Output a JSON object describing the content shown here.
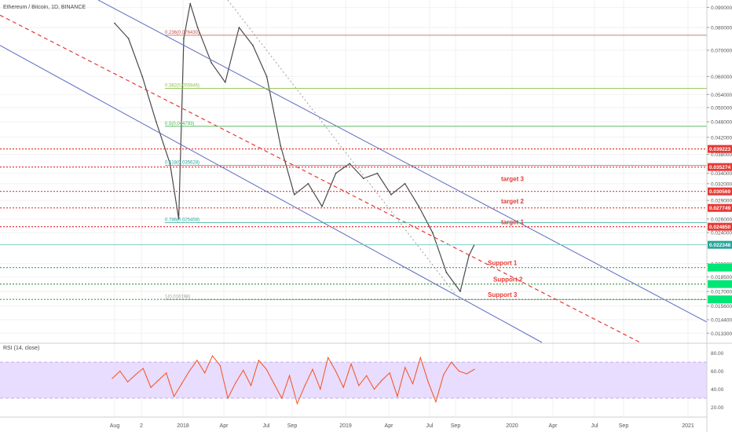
{
  "header": {
    "title": "Ethereum / Bitcoin, 1D, BINANCE"
  },
  "chart_data": {
    "type": "line",
    "title": "Ethereum / Bitcoin, 1D, BINANCE",
    "scale": "log",
    "ylim": [
      0.0126,
      0.094
    ],
    "price_ticks": [
      "0.090000",
      "0.080000",
      "0.070000",
      "0.060000",
      "0.054000",
      "0.050000",
      "0.046000",
      "0.042000",
      "0.038000",
      "0.034000",
      "0.032000",
      "0.029000",
      "0.026000",
      "0.024000",
      "0.020000",
      "0.018500",
      "0.017000",
      "0.015600",
      "0.014400",
      "0.013300"
    ],
    "x_ticks": [
      "Aug",
      "2",
      "2018",
      "Apr",
      "Jul",
      "Sep",
      "2019",
      "Apr",
      "Jul",
      "Sep",
      "2020",
      "Apr",
      "Jul",
      "Sep",
      "2021"
    ],
    "price_series": {
      "name": "ETHBTC",
      "x": [
        "2017-08",
        "2017-09",
        "2017-10",
        "2017-11",
        "2017-12",
        "2017-12-20",
        "2018-01",
        "2018-01-15",
        "2018-02",
        "2018-03",
        "2018-04",
        "2018-05",
        "2018-06",
        "2018-07",
        "2018-08",
        "2018-09",
        "2018-10",
        "2018-11",
        "2018-12",
        "2019-01",
        "2019-02",
        "2019-03",
        "2019-04",
        "2019-05",
        "2019-06",
        "2019-07",
        "2019-08",
        "2019-09",
        "2019-09-20",
        "2019-10"
      ],
      "y": [
        0.082,
        0.075,
        0.06,
        0.046,
        0.036,
        0.026,
        0.075,
        0.092,
        0.08,
        0.065,
        0.058,
        0.08,
        0.072,
        0.06,
        0.04,
        0.03,
        0.032,
        0.028,
        0.034,
        0.036,
        0.033,
        0.034,
        0.03,
        0.032,
        0.028,
        0.024,
        0.019,
        0.017,
        0.021,
        0.0223
      ]
    },
    "fib_levels": [
      {
        "label": "0.236(0.076430)",
        "price": 0.07643,
        "color": "#c0504d"
      },
      {
        "label": "0.382(0.055946)",
        "price": 0.055946,
        "color": "#8bc34a"
      },
      {
        "label": "0.5(0.044793)",
        "price": 0.044793,
        "color": "#4caf50"
      },
      {
        "label": "0.618(0.035628)",
        "price": 0.035628,
        "color": "#26a69a"
      },
      {
        "label": "0.786(0.025458)",
        "price": 0.025458,
        "color": "#26a69a"
      },
      {
        "label": "1(0.016198)",
        "price": 0.016198,
        "color": "#9e9e9e"
      }
    ],
    "resistance_levels": [
      {
        "value": "0.039223",
        "price": 0.039223
      },
      {
        "value": "0.035274",
        "price": 0.035274
      },
      {
        "value": "0.030569",
        "price": 0.030569
      },
      {
        "value": "0.027749",
        "price": 0.027749
      },
      {
        "value": "0.024850",
        "price": 0.02485
      }
    ],
    "target_labels": [
      "target 3",
      "target 2",
      "target 1"
    ],
    "support_labels": [
      "Support 1",
      "Support 2",
      "Support 3"
    ],
    "current_price": "0.022348",
    "colors": {
      "resistance": "#e53935",
      "support": "#43a047",
      "channel": "#5c6bc0",
      "price": "#4a4a4a",
      "rsi": "#f4511e",
      "rsi_band": "#e8dcff"
    },
    "rsi": {
      "title": "RSI (14, close)",
      "ylim": [
        10,
        90
      ],
      "ticks": [
        "80.00",
        "60.00",
        "40.00",
        "20.00"
      ],
      "upper": 70,
      "lower": 30,
      "values": [
        52,
        60,
        48,
        56,
        63,
        42,
        50,
        58,
        32,
        46,
        60,
        72,
        58,
        77,
        66,
        30,
        47,
        61,
        44,
        72,
        62,
        46,
        30,
        55,
        24,
        44,
        62,
        40,
        75,
        60,
        42,
        68,
        44,
        55,
        40,
        50,
        58,
        32,
        64,
        46,
        75,
        48,
        26,
        56,
        70,
        60,
        57,
        62
      ]
    }
  }
}
